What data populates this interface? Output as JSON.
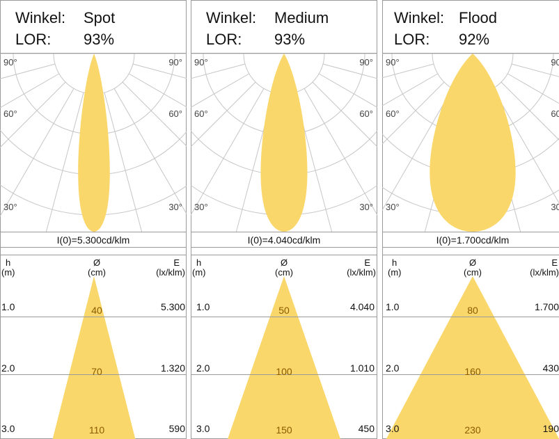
{
  "header_label_angle": "Winkel:",
  "header_label_lor": "LOR:",
  "angle_labels": {
    "a90": "90°",
    "a60": "60°",
    "a30": "30°"
  },
  "column_headers": {
    "h": "h",
    "h_unit": "(m)",
    "d": "Ø",
    "d_unit": "(cm)",
    "e": "E",
    "e_unit": "(lx/klm)"
  },
  "colors": {
    "beam": "#fad76a",
    "grid": "#c6c6c6",
    "frame": "#9a9a9a"
  },
  "panels": [
    {
      "angle": "Spot",
      "lor": "93%",
      "intensity": "I(0)=5.300cd/klm",
      "beam_width": 0.17,
      "rows": [
        {
          "h": "1.0",
          "d": "40",
          "e": "5.300"
        },
        {
          "h": "2.0",
          "d": "70",
          "e": "1.320"
        },
        {
          "h": "3.0",
          "d": "110",
          "e": "590"
        }
      ]
    },
    {
      "angle": "Medium",
      "lor": "93%",
      "intensity": "I(0)=4.040cd/klm",
      "beam_width": 0.25,
      "rows": [
        {
          "h": "1.0",
          "d": "50",
          "e": "4.040"
        },
        {
          "h": "2.0",
          "d": "100",
          "e": "1.010"
        },
        {
          "h": "3.0",
          "d": "150",
          "e": "450"
        }
      ]
    },
    {
      "angle": "Flood",
      "lor": "92%",
      "intensity": "I(0)=1.700cd/klm",
      "beam_width": 0.46,
      "rows": [
        {
          "h": "1.0",
          "d": "80",
          "e": "1.700"
        },
        {
          "h": "2.0",
          "d": "160",
          "e": "430"
        },
        {
          "h": "3.0",
          "d": "230",
          "e": "190"
        }
      ]
    }
  ]
}
